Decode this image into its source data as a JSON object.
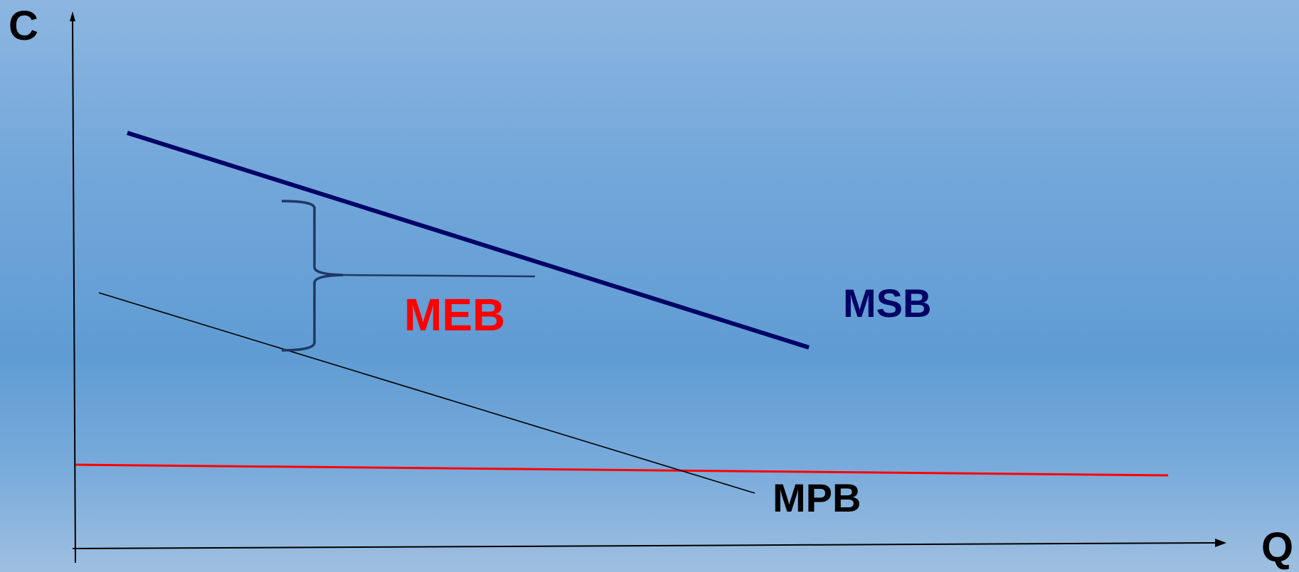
{
  "axes": {
    "y_label": "C",
    "x_label": "Q"
  },
  "curves": {
    "msb_label": "MSB",
    "mpb_label": "MPB",
    "meb_label": "MEB"
  },
  "colors": {
    "msb": "#000066",
    "mpb": "#000000",
    "meb_line": "#ff0000",
    "meb_label": "#ff0000",
    "brace": "#1f3864",
    "axis": "#000000"
  }
}
